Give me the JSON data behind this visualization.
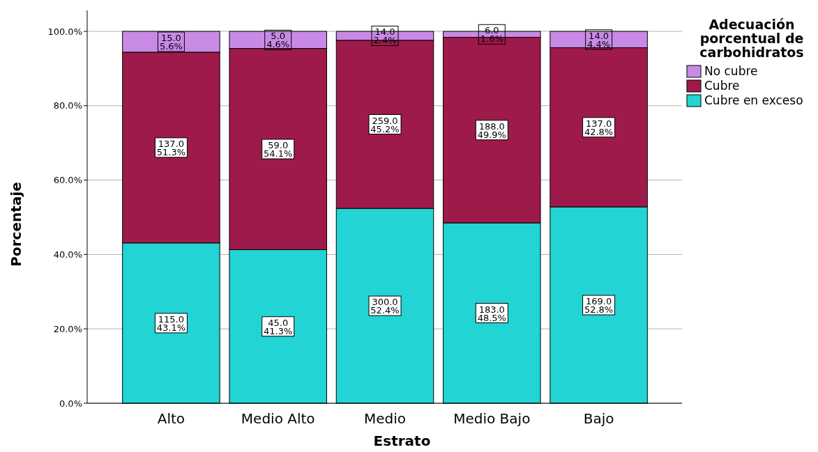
{
  "chart_data": {
    "type": "bar",
    "stacked": true,
    "xlabel": "Estrato",
    "ylabel": "Porcentaje",
    "legend_title": "Adecuación porcentual de carbohidratos",
    "legend": "right",
    "grid": "y",
    "categories": [
      "Alto",
      "Medio Alto",
      "Medio",
      "Medio Bajo",
      "Bajo"
    ],
    "ylim": [
      0,
      100
    ],
    "yticks": [
      {
        "value": 0,
        "label": "0.0%"
      },
      {
        "value": 20,
        "label": "20.0%"
      },
      {
        "value": 40,
        "label": "40.0%"
      },
      {
        "value": 60,
        "label": "60.0%"
      },
      {
        "value": 80,
        "label": "80.0%"
      },
      {
        "value": 100,
        "label": "100.0%"
      }
    ],
    "series": [
      {
        "name": "Cubre en exceso",
        "color": "#22d4d4",
        "values": [
          43.1,
          41.3,
          52.4,
          48.5,
          52.8
        ],
        "value_labels": [
          "115.0\n43.1%",
          "45.0\n41.3%",
          "300.0\n52.4%",
          "183.0\n48.5%",
          "169.0\n52.8%"
        ]
      },
      {
        "name": "Cubre",
        "color": "#9e1a4a",
        "values": [
          51.3,
          54.1,
          45.2,
          49.9,
          42.8
        ],
        "value_labels": [
          "137.0\n51.3%",
          "59.0\n54.1%",
          "259.0\n45.2%",
          "188.0\n49.9%",
          "137.0\n42.8%"
        ]
      },
      {
        "name": "No cubre",
        "color": "#c98ae6",
        "values": [
          5.6,
          4.6,
          2.4,
          1.6,
          4.4
        ],
        "value_labels": [
          "15.0\n5.6%",
          "5.0\n4.6%",
          "14.0\n2.4%",
          "6.0\n1.6%",
          "14.0\n4.4%"
        ]
      }
    ]
  }
}
